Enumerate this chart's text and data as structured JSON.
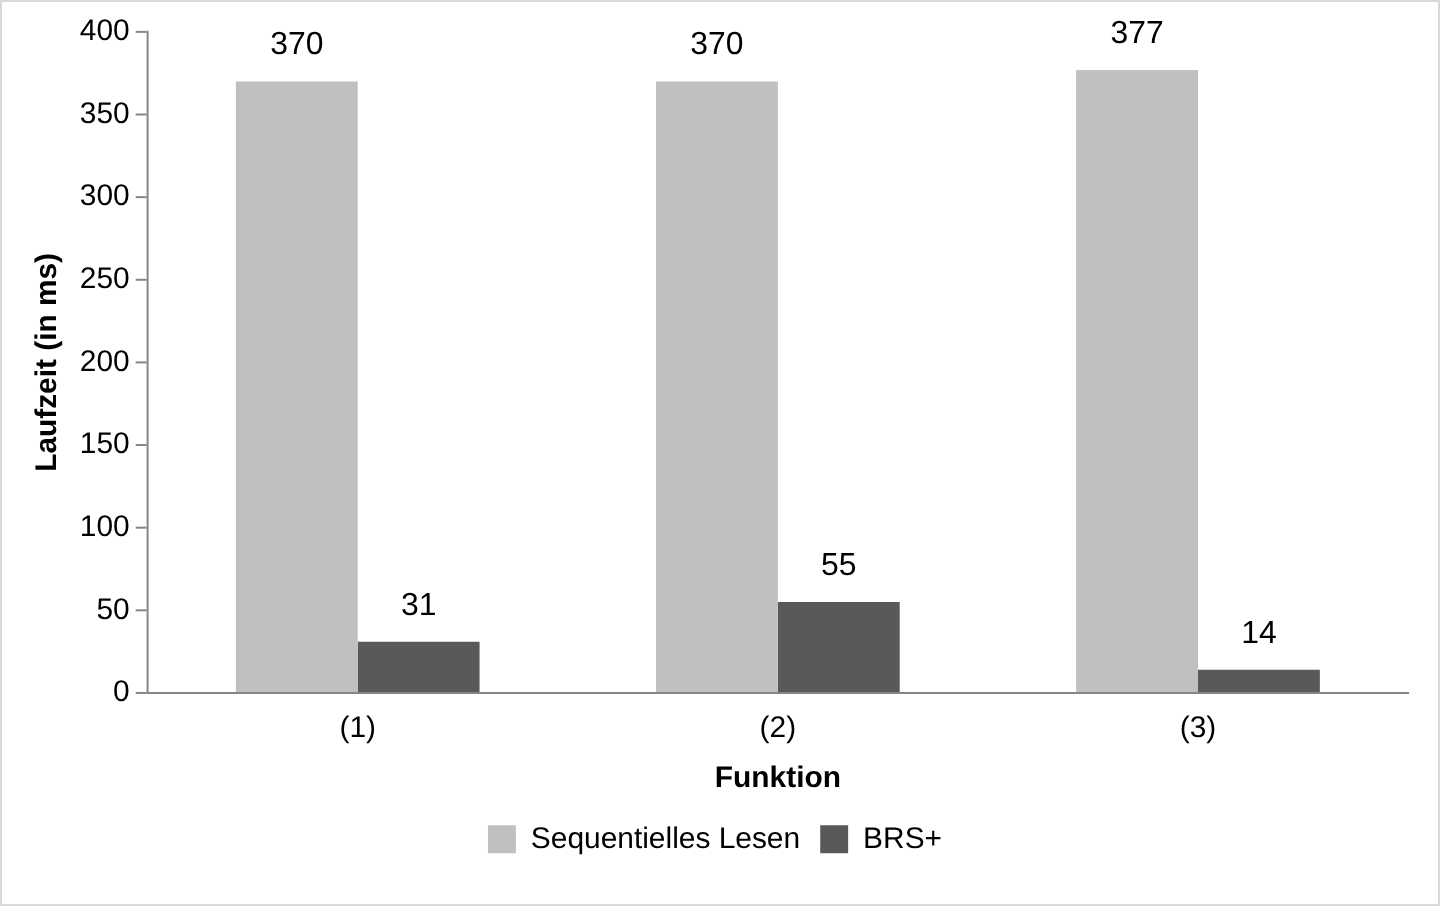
{
  "chart_data": {
    "type": "bar",
    "xlabel": "Funktion",
    "ylabel": "Laufzeit (in ms)",
    "categories": [
      "(1)",
      "(2)",
      "(3)"
    ],
    "series": [
      {
        "name": "Sequentielles Lesen",
        "color": "#c0c0c0",
        "values": [
          370,
          370,
          377
        ]
      },
      {
        "name": "BRS+",
        "color": "#595959",
        "values": [
          31,
          55,
          14
        ]
      }
    ],
    "ylim": [
      0,
      400
    ],
    "yticks": [
      0,
      50,
      100,
      150,
      200,
      250,
      300,
      350,
      400
    ],
    "grid": false,
    "legend": "bottom",
    "data_labels": true
  }
}
